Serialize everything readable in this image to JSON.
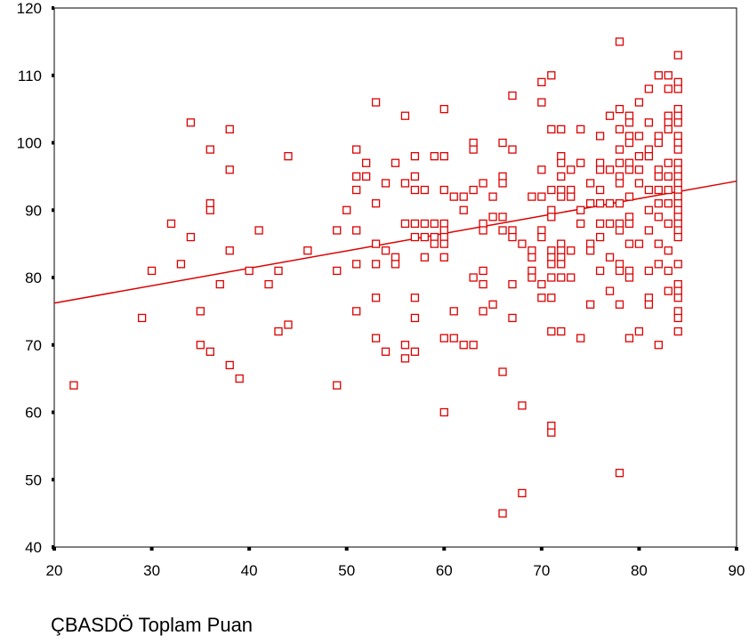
{
  "chart_data": {
    "type": "scatter",
    "title": "",
    "xlabel": "ÇBASDÖ Toplam Puan",
    "ylabel": "",
    "xlim": [
      20,
      90
    ],
    "ylim": [
      40,
      120
    ],
    "xticks": [
      20,
      30,
      40,
      50,
      60,
      70,
      80,
      90
    ],
    "yticks": [
      40,
      50,
      60,
      70,
      80,
      90,
      100,
      110,
      120
    ],
    "grid": false,
    "legend": "none",
    "marker_color": "#dd0000",
    "line_color": "#dd0000",
    "fit_line": {
      "x": [
        20,
        90
      ],
      "y": [
        76.2,
        94.3
      ]
    },
    "points": [
      [
        22,
        64
      ],
      [
        29,
        74
      ],
      [
        30,
        81
      ],
      [
        32,
        88
      ],
      [
        33,
        82
      ],
      [
        34,
        103
      ],
      [
        34,
        86
      ],
      [
        35,
        75
      ],
      [
        35,
        70
      ],
      [
        36,
        99
      ],
      [
        36,
        91
      ],
      [
        36,
        90
      ],
      [
        36,
        69
      ],
      [
        37,
        79
      ],
      [
        38,
        102
      ],
      [
        38,
        96
      ],
      [
        38,
        84
      ],
      [
        38,
        67
      ],
      [
        39,
        65
      ],
      [
        40,
        81
      ],
      [
        41,
        87
      ],
      [
        42,
        79
      ],
      [
        43,
        81
      ],
      [
        43,
        72
      ],
      [
        44,
        98
      ],
      [
        44,
        73
      ],
      [
        46,
        84
      ],
      [
        49,
        87
      ],
      [
        49,
        81
      ],
      [
        49,
        64
      ],
      [
        50,
        90
      ],
      [
        51,
        99
      ],
      [
        51,
        95
      ],
      [
        51,
        93
      ],
      [
        51,
        87
      ],
      [
        51,
        82
      ],
      [
        51,
        75
      ],
      [
        52,
        97
      ],
      [
        52,
        95
      ],
      [
        53,
        106
      ],
      [
        53,
        91
      ],
      [
        53,
        85
      ],
      [
        53,
        82
      ],
      [
        53,
        77
      ],
      [
        53,
        71
      ],
      [
        54,
        94
      ],
      [
        54,
        84
      ],
      [
        54,
        69
      ],
      [
        55,
        97
      ],
      [
        55,
        83
      ],
      [
        55,
        82
      ],
      [
        56,
        104
      ],
      [
        56,
        94
      ],
      [
        56,
        88
      ],
      [
        56,
        70
      ],
      [
        56,
        68
      ],
      [
        57,
        98
      ],
      [
        57,
        95
      ],
      [
        57,
        93
      ],
      [
        57,
        88
      ],
      [
        57,
        86
      ],
      [
        57,
        77
      ],
      [
        57,
        74
      ],
      [
        57,
        69
      ],
      [
        58,
        93
      ],
      [
        58,
        88
      ],
      [
        58,
        86
      ],
      [
        58,
        83
      ],
      [
        59,
        98
      ],
      [
        59,
        88
      ],
      [
        59,
        86
      ],
      [
        59,
        85
      ],
      [
        60,
        105
      ],
      [
        60,
        98
      ],
      [
        60,
        93
      ],
      [
        60,
        88
      ],
      [
        60,
        87
      ],
      [
        60,
        86
      ],
      [
        60,
        85
      ],
      [
        60,
        83
      ],
      [
        60,
        71
      ],
      [
        60,
        60
      ],
      [
        61,
        92
      ],
      [
        61,
        75
      ],
      [
        61,
        71
      ],
      [
        62,
        92
      ],
      [
        62,
        90
      ],
      [
        62,
        70
      ],
      [
        63,
        100
      ],
      [
        63,
        99
      ],
      [
        63,
        93
      ],
      [
        63,
        80
      ],
      [
        63,
        70
      ],
      [
        64,
        94
      ],
      [
        64,
        88
      ],
      [
        64,
        87
      ],
      [
        64,
        81
      ],
      [
        64,
        79
      ],
      [
        64,
        75
      ],
      [
        65,
        92
      ],
      [
        65,
        89
      ],
      [
        65,
        76
      ],
      [
        66,
        100
      ],
      [
        66,
        95
      ],
      [
        66,
        94
      ],
      [
        66,
        89
      ],
      [
        66,
        87
      ],
      [
        66,
        66
      ],
      [
        66,
        45
      ],
      [
        67,
        107
      ],
      [
        67,
        99
      ],
      [
        67,
        87
      ],
      [
        67,
        86
      ],
      [
        67,
        79
      ],
      [
        67,
        74
      ],
      [
        68,
        85
      ],
      [
        68,
        61
      ],
      [
        68,
        48
      ],
      [
        69,
        92
      ],
      [
        69,
        84
      ],
      [
        69,
        83
      ],
      [
        69,
        81
      ],
      [
        69,
        80
      ],
      [
        70,
        109
      ],
      [
        70,
        106
      ],
      [
        70,
        96
      ],
      [
        70,
        92
      ],
      [
        70,
        87
      ],
      [
        70,
        86
      ],
      [
        70,
        79
      ],
      [
        70,
        77
      ],
      [
        71,
        110
      ],
      [
        71,
        102
      ],
      [
        71,
        93
      ],
      [
        71,
        90
      ],
      [
        71,
        89
      ],
      [
        71,
        84
      ],
      [
        71,
        83
      ],
      [
        71,
        82
      ],
      [
        71,
        80
      ],
      [
        71,
        77
      ],
      [
        71,
        72
      ],
      [
        71,
        58
      ],
      [
        71,
        57
      ],
      [
        72,
        102
      ],
      [
        72,
        98
      ],
      [
        72,
        97
      ],
      [
        72,
        95
      ],
      [
        72,
        93
      ],
      [
        72,
        92
      ],
      [
        72,
        85
      ],
      [
        72,
        84
      ],
      [
        72,
        83
      ],
      [
        72,
        82
      ],
      [
        72,
        80
      ],
      [
        72,
        72
      ],
      [
        73,
        96
      ],
      [
        73,
        93
      ],
      [
        73,
        92
      ],
      [
        73,
        84
      ],
      [
        73,
        80
      ],
      [
        74,
        102
      ],
      [
        74,
        97
      ],
      [
        74,
        90
      ],
      [
        74,
        88
      ],
      [
        74,
        71
      ],
      [
        75,
        94
      ],
      [
        75,
        91
      ],
      [
        75,
        85
      ],
      [
        75,
        84
      ],
      [
        75,
        76
      ],
      [
        76,
        101
      ],
      [
        76,
        97
      ],
      [
        76,
        96
      ],
      [
        76,
        93
      ],
      [
        76,
        91
      ],
      [
        76,
        88
      ],
      [
        76,
        86
      ],
      [
        76,
        81
      ],
      [
        77,
        104
      ],
      [
        77,
        96
      ],
      [
        77,
        91
      ],
      [
        77,
        88
      ],
      [
        77,
        83
      ],
      [
        77,
        78
      ],
      [
        78,
        115
      ],
      [
        78,
        105
      ],
      [
        78,
        102
      ],
      [
        78,
        99
      ],
      [
        78,
        97
      ],
      [
        78,
        95
      ],
      [
        78,
        94
      ],
      [
        78,
        91
      ],
      [
        78,
        88
      ],
      [
        78,
        87
      ],
      [
        78,
        82
      ],
      [
        78,
        81
      ],
      [
        78,
        76
      ],
      [
        78,
        51
      ],
      [
        79,
        104
      ],
      [
        79,
        103
      ],
      [
        79,
        101
      ],
      [
        79,
        100
      ],
      [
        79,
        97
      ],
      [
        79,
        96
      ],
      [
        79,
        92
      ],
      [
        79,
        89
      ],
      [
        79,
        88
      ],
      [
        79,
        85
      ],
      [
        79,
        81
      ],
      [
        79,
        80
      ],
      [
        79,
        71
      ],
      [
        80,
        106
      ],
      [
        80,
        101
      ],
      [
        80,
        98
      ],
      [
        80,
        96
      ],
      [
        80,
        94
      ],
      [
        80,
        85
      ],
      [
        80,
        72
      ],
      [
        81,
        108
      ],
      [
        81,
        103
      ],
      [
        81,
        99
      ],
      [
        81,
        98
      ],
      [
        81,
        93
      ],
      [
        81,
        90
      ],
      [
        81,
        87
      ],
      [
        81,
        81
      ],
      [
        81,
        77
      ],
      [
        81,
        76
      ],
      [
        82,
        110
      ],
      [
        82,
        101
      ],
      [
        82,
        100
      ],
      [
        82,
        96
      ],
      [
        82,
        95
      ],
      [
        82,
        93
      ],
      [
        82,
        91
      ],
      [
        82,
        89
      ],
      [
        82,
        85
      ],
      [
        82,
        82
      ],
      [
        82,
        70
      ],
      [
        83,
        110
      ],
      [
        83,
        108
      ],
      [
        83,
        104
      ],
      [
        83,
        103
      ],
      [
        83,
        102
      ],
      [
        83,
        97
      ],
      [
        83,
        95
      ],
      [
        83,
        93
      ],
      [
        83,
        91
      ],
      [
        83,
        88
      ],
      [
        83,
        84
      ],
      [
        83,
        81
      ],
      [
        83,
        78
      ],
      [
        84,
        113
      ],
      [
        84,
        109
      ],
      [
        84,
        108
      ],
      [
        84,
        105
      ],
      [
        84,
        104
      ],
      [
        84,
        103
      ],
      [
        84,
        101
      ],
      [
        84,
        100
      ],
      [
        84,
        99
      ],
      [
        84,
        97
      ],
      [
        84,
        96
      ],
      [
        84,
        95
      ],
      [
        84,
        94
      ],
      [
        84,
        93
      ],
      [
        84,
        92
      ],
      [
        84,
        91
      ],
      [
        84,
        90
      ],
      [
        84,
        89
      ],
      [
        84,
        88
      ],
      [
        84,
        87
      ],
      [
        84,
        86
      ],
      [
        84,
        82
      ],
      [
        84,
        79
      ],
      [
        84,
        78
      ],
      [
        84,
        77
      ],
      [
        84,
        75
      ],
      [
        84,
        74
      ],
      [
        84,
        72
      ]
    ]
  }
}
